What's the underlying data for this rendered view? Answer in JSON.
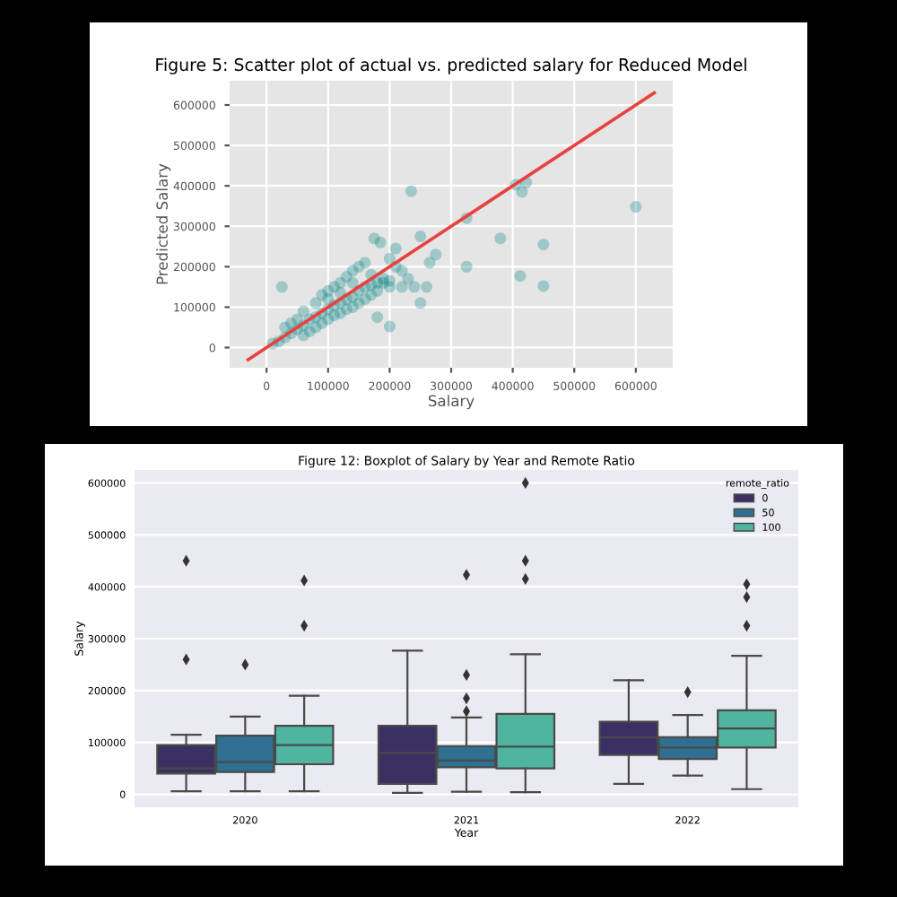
{
  "chart_data": [
    {
      "type": "scatter",
      "title": "Figure 5: Scatter plot of actual vs. predicted salary for Reduced Model",
      "xlabel": "Salary",
      "ylabel": "Predicted Salary",
      "xlim": [
        -60000,
        660000
      ],
      "ylim": [
        -50000,
        660000
      ],
      "xticks": [
        0,
        100000,
        200000,
        300000,
        400000,
        500000,
        600000
      ],
      "yticks": [
        0,
        100000,
        200000,
        300000,
        400000,
        500000,
        600000
      ],
      "grid": true,
      "series": [
        {
          "type": "scatter",
          "marker": "circle",
          "color": "#008080",
          "x": [
            10000,
            20000,
            30000,
            40000,
            50000,
            60000,
            70000,
            80000,
            90000,
            100000,
            110000,
            120000,
            130000,
            140000,
            150000,
            160000,
            170000,
            180000,
            190000,
            200000,
            30000,
            50000,
            60000,
            80000,
            90000,
            100000,
            110000,
            120000,
            130000,
            140000,
            150000,
            160000,
            70000,
            80000,
            90000,
            100000,
            110000,
            120000,
            130000,
            140000,
            150000,
            160000,
            170000,
            180000,
            200000,
            220000,
            230000,
            220000,
            210000,
            200000,
            190000,
            40000,
            60000,
            100000,
            120000,
            140000,
            170000,
            235000,
            325000,
            380000,
            405000,
            415000,
            422000,
            412000,
            450000,
            450000,
            600000,
            325000,
            275000,
            265000,
            250000,
            200000,
            180000,
            25000,
            175000,
            185000,
            210000,
            250000,
            240000,
            260000
          ],
          "values": [
            10000,
            15000,
            25000,
            35000,
            45000,
            55000,
            70000,
            75000,
            85000,
            95000,
            105000,
            110000,
            120000,
            125000,
            140000,
            150000,
            155000,
            160000,
            160000,
            165000,
            50000,
            70000,
            90000,
            110000,
            130000,
            140000,
            150000,
            160000,
            175000,
            190000,
            200000,
            210000,
            40000,
            50000,
            60000,
            70000,
            80000,
            85000,
            95000,
            100000,
            110000,
            120000,
            130000,
            140000,
            150000,
            150000,
            170000,
            190000,
            200000,
            220000,
            170000,
            60000,
            30000,
            120000,
            135000,
            160000,
            180000,
            387000,
            320000,
            270000,
            403000,
            385000,
            408000,
            177000,
            255000,
            152000,
            348000,
            200000,
            230000,
            210000,
            275000,
            52000,
            75000,
            150000,
            270000,
            260000,
            245000,
            110000,
            150000,
            150000
          ]
        },
        {
          "type": "line",
          "color": "#e8413f",
          "x": [
            -30000,
            630000
          ],
          "values": [
            -30000,
            630000
          ]
        }
      ]
    },
    {
      "type": "box",
      "title": "Figure 12: Boxplot of Salary by Year and Remote Ratio",
      "xlabel": "Year",
      "ylabel": "Salary",
      "legend_title": "remote_ratio",
      "legend": "top right",
      "categories": [
        "2020",
        "2021",
        "2022"
      ],
      "ylim": [
        -25000,
        625000
      ],
      "yticks": [
        0,
        100000,
        200000,
        300000,
        400000,
        500000,
        600000
      ],
      "grid": "y",
      "series": [
        {
          "name": "0",
          "color": "#3b2f63",
          "boxes": [
            {
              "low": 6000,
              "q1": 40000,
              "median": 50000,
              "q3": 95000,
              "high": 115000,
              "outliers": [
                260000,
                450000
              ]
            },
            {
              "low": 3000,
              "q1": 20000,
              "median": 80000,
              "q3": 132000,
              "high": 277000
            },
            {
              "low": 20000,
              "q1": 76000,
              "median": 110000,
              "q3": 140000,
              "high": 220000
            }
          ]
        },
        {
          "name": "50",
          "color": "#2f6f91",
          "boxes": [
            {
              "low": 6000,
              "q1": 43000,
              "median": 62000,
              "q3": 113000,
              "high": 150000,
              "outliers": [
                250000
              ]
            },
            {
              "low": 5000,
              "q1": 52000,
              "median": 65000,
              "q3": 93000,
              "high": 148000,
              "outliers": [
                160000,
                185000,
                230000,
                423000
              ]
            },
            {
              "low": 36000,
              "q1": 68000,
              "median": 90000,
              "q3": 110000,
              "high": 153000,
              "outliers": [
                197000
              ]
            }
          ]
        },
        {
          "name": "100",
          "color": "#4fb5a0",
          "boxes": [
            {
              "low": 6000,
              "q1": 58000,
              "median": 95000,
              "q3": 132000,
              "high": 190000,
              "outliers": [
                325000,
                412000
              ]
            },
            {
              "low": 4000,
              "q1": 50000,
              "median": 92000,
              "q3": 155000,
              "high": 270000,
              "outliers": [
                415000,
                450000,
                600000
              ]
            },
            {
              "low": 10000,
              "q1": 90000,
              "median": 127000,
              "q3": 162000,
              "high": 267000,
              "outliers": [
                325000,
                380000,
                405000
              ]
            }
          ]
        }
      ]
    }
  ]
}
